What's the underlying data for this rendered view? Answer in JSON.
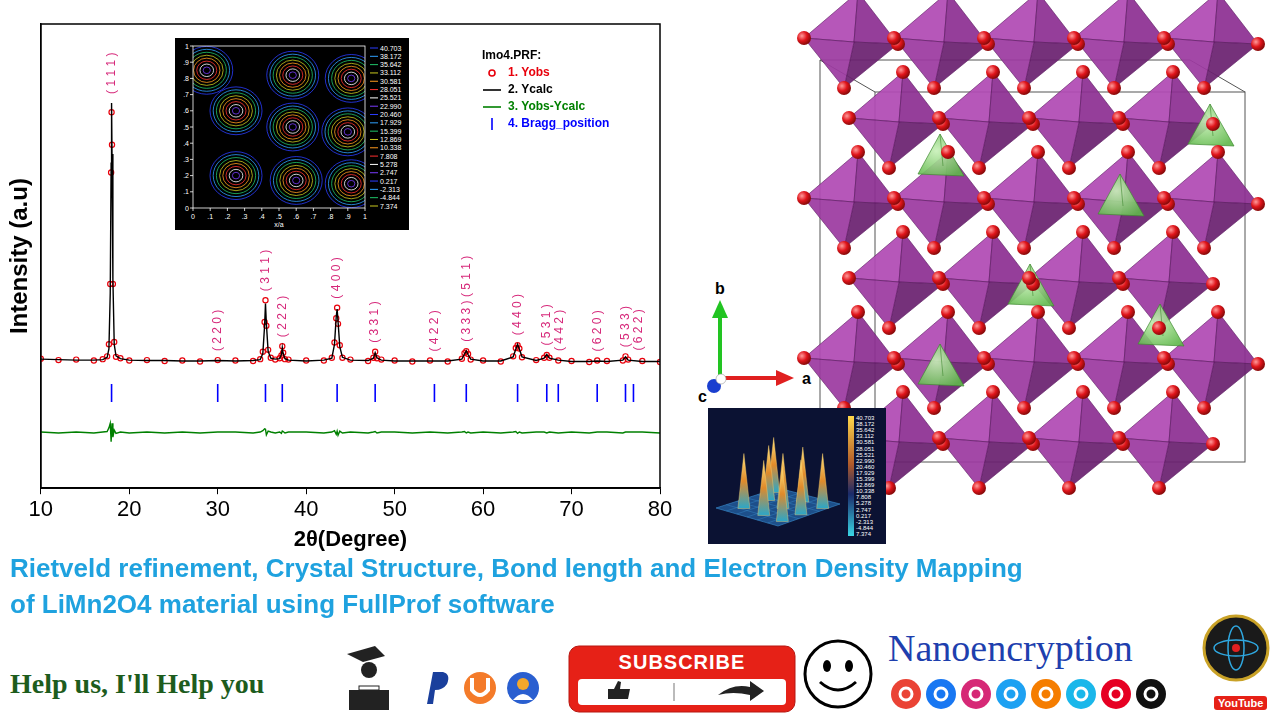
{
  "chart_data": {
    "type": "scatter",
    "xlabel": "2θ(Degree)",
    "ylabel": "Intensity (a.u)",
    "xlim": [
      10,
      80
    ],
    "xticks": [
      10,
      20,
      30,
      40,
      50,
      60,
      70,
      80
    ],
    "ylim": [
      0,
      100
    ],
    "tick_labels": "x",
    "grid": false,
    "legend": "top-right",
    "legend_title": "Imo4.PRF:",
    "x": [
      10,
      12,
      14,
      16,
      17,
      17.5,
      17.7,
      17.85,
      17.95,
      18.0,
      18.05,
      18.15,
      18.3,
      18.5,
      19,
      20,
      22,
      24,
      26,
      28,
      30,
      32,
      34,
      34.8,
      35.1,
      35.3,
      35.4,
      35.5,
      35.7,
      36.0,
      36.5,
      37.0,
      37.2,
      37.3,
      37.4,
      37.6,
      38,
      40,
      42,
      42.9,
      43.2,
      43.4,
      43.5,
      43.6,
      43.8,
      44.1,
      45,
      47,
      47.6,
      47.8,
      48.0,
      48.5,
      50,
      52,
      54,
      56,
      57.6,
      57.9,
      58.1,
      58.3,
      58.6,
      60,
      62,
      63.4,
      63.7,
      63.9,
      64.1,
      64.4,
      66,
      66.9,
      67.2,
      67.5,
      68.5,
      70,
      72,
      72.9,
      74,
      75.8,
      76.1,
      76.4,
      78,
      80
    ],
    "series": [
      {
        "name": "1. Yobs",
        "type": "scatter",
        "marker": "circle",
        "color": "#e8000b",
        "values": [
          27.9,
          27.6,
          27.7,
          27.5,
          27.8,
          28.4,
          31,
          44,
          68,
          81,
          74,
          44,
          31.5,
          28.3,
          28,
          27.5,
          27.6,
          27.4,
          27.5,
          27.3,
          27.6,
          27.5,
          27.4,
          27.8,
          29.4,
          35.8,
          40.5,
          35,
          29.8,
          28.1,
          27.7,
          28,
          28.6,
          30.6,
          29.2,
          27.8,
          27.7,
          27.5,
          27.5,
          28.1,
          31.4,
          36.6,
          38.9,
          35.4,
          30.8,
          28.1,
          27.7,
          27.4,
          28.1,
          29.4,
          28,
          27.7,
          27.5,
          27.3,
          27.5,
          27.3,
          27.9,
          29.1,
          29.5,
          28.9,
          27.7,
          27.5,
          27.3,
          28.4,
          30.2,
          30.8,
          30.1,
          28.2,
          27.6,
          28.1,
          28.7,
          28.1,
          27.5,
          27.4,
          27.2,
          27.5,
          27.4,
          27.5,
          28.4,
          27.7,
          27.4,
          27.2
        ]
      },
      {
        "name": "2. Ycalc",
        "type": "line",
        "color": "#000000",
        "values": [
          27.8,
          27.7,
          27.6,
          27.6,
          27.7,
          28.2,
          30,
          42,
          70,
          83,
          72,
          45,
          31,
          28.5,
          27.9,
          27.6,
          27.5,
          27.5,
          27.4,
          27.4,
          27.5,
          27.4,
          27.5,
          27.7,
          29,
          35,
          39.8,
          35.5,
          29.5,
          28,
          27.8,
          27.9,
          28.8,
          30.3,
          29,
          27.9,
          27.6,
          27.4,
          27.6,
          28,
          31,
          37,
          38.6,
          36,
          30.5,
          28.2,
          27.6,
          27.5,
          28,
          29.2,
          28.1,
          27.6,
          27.4,
          27.4,
          27.4,
          27.4,
          27.8,
          28.9,
          29.6,
          28.8,
          27.8,
          27.4,
          27.4,
          28.3,
          30,
          31,
          30,
          28.3,
          27.5,
          28,
          28.8,
          28,
          27.6,
          27.3,
          27.3,
          27.4,
          27.3,
          27.6,
          28.3,
          27.6,
          27.3,
          27.3
        ]
      },
      {
        "name": "3. Yobs-Ycalc",
        "type": "line",
        "color": "#008000",
        "values": [
          12.1,
          11.9,
          12.1,
          11.9,
          12.1,
          12.2,
          13,
          14,
          10,
          10,
          14,
          11,
          12.5,
          11.8,
          12.1,
          11.9,
          12.1,
          11.9,
          12.1,
          11.9,
          12.1,
          12.1,
          11.9,
          12.1,
          12.4,
          12.8,
          12.7,
          11.5,
          12.3,
          12.1,
          11.9,
          12.1,
          11.8,
          12.3,
          12.2,
          11.9,
          12.1,
          12.1,
          11.9,
          12.1,
          12.4,
          11.6,
          12.3,
          11.4,
          12.3,
          11.9,
          12.1,
          11.9,
          12.1,
          12.2,
          11.9,
          12.1,
          12.1,
          11.9,
          12.1,
          11.9,
          12.1,
          12.2,
          11.9,
          12.1,
          11.9,
          12.1,
          11.9,
          12.1,
          12.2,
          11.8,
          12.1,
          11.9,
          12.1,
          12.1,
          11.9,
          12.1,
          11.9,
          12.1,
          11.9,
          12.1,
          12.1,
          11.9,
          12.1,
          12.1,
          12.1,
          11.9
        ]
      },
      {
        "name": "4. Bragg_position",
        "type": "scatter",
        "marker": "line",
        "color": "#0000ff",
        "x": [
          18.0,
          30.0,
          35.4,
          37.3,
          43.5,
          47.8,
          54.5,
          58.1,
          63.9,
          67.2,
          68.5,
          72.9,
          76.1,
          77.0
        ],
        "values": [
          20.5,
          20.5,
          20.5,
          20.5,
          20.5,
          20.5,
          20.5,
          20.5,
          20.5,
          20.5,
          20.5,
          20.5,
          20.5,
          20.5
        ]
      }
    ],
    "annotations": [
      {
        "x": 18.0,
        "text": "( 1 1 1 )"
      },
      {
        "x": 30.0,
        "text": "( 2 2 0 )"
      },
      {
        "x": 35.4,
        "text": "( 3 1 1 )"
      },
      {
        "x": 37.3,
        "text": "( 2 2 2 )"
      },
      {
        "x": 43.5,
        "text": "( 4 0 0 )"
      },
      {
        "x": 47.8,
        "text": "( 3 3 1 )"
      },
      {
        "x": 54.5,
        "text": "( 4 2 2 )"
      },
      {
        "x": 58.1,
        "text": "( 3 3 3 ) ( 5 1 1 )"
      },
      {
        "x": 63.9,
        "text": "( 4 4 0 )"
      },
      {
        "x": 67.2,
        "text": "( 5 3 1 )"
      },
      {
        "x": 68.5,
        "text": "( 4 4 2 )"
      },
      {
        "x": 72.9,
        "text": "( 6 2 0 )"
      },
      {
        "x": 76.1,
        "text": "( 5 3 3 )"
      },
      {
        "x": 77.0,
        "text": "( 6 2 2 )"
      }
    ]
  },
  "contour_inset": {
    "xlabel": "x/a",
    "xticks": [
      0,
      {
        "value": 0.1,
        "label": ".1"
      },
      {
        "value": 0.2,
        "label": ".2"
      },
      {
        "value": 0.3,
        "label": ".3"
      },
      {
        "value": 0.4,
        "label": ".4"
      },
      {
        "value": 0.5,
        "label": ".5"
      },
      {
        "value": 0.6,
        "label": ".6"
      },
      {
        "value": 0.7,
        "label": ".7"
      },
      {
        "value": 0.8,
        "label": ".8"
      },
      {
        "value": 0.9,
        "label": ".9"
      },
      1
    ],
    "yticks": [
      0,
      {
        "value": 0.1,
        "label": ".1"
      },
      {
        "value": 0.2,
        "label": ".2"
      },
      {
        "value": 0.3,
        "label": ".3"
      },
      {
        "value": 0.4,
        "label": ".4"
      },
      {
        "value": 0.5,
        "label": ".5"
      },
      {
        "value": 0.6,
        "label": ".6"
      },
      {
        "value": 0.7,
        "label": ".7"
      },
      {
        "value": 0.8,
        "label": ".8"
      },
      {
        "value": 0.9,
        "label": ".9"
      },
      1
    ],
    "levels": [
      40.703,
      38.172,
      35.642,
      33.112,
      30.581,
      28.051,
      25.521,
      {
        "value": 22.99,
        "label": "22.990"
      },
      {
        "value": 20.46,
        "label": "20.460"
      },
      17.929,
      15.399,
      12.869,
      10.338,
      7.808,
      5.278,
      2.747,
      0.217,
      -2.313,
      -4.844,
      7.374
    ],
    "density_maxima": [
      {
        "x": 0.58,
        "y": 0.82
      },
      {
        "x": 0.92,
        "y": 0.8
      },
      {
        "x": 0.08,
        "y": 0.85
      },
      {
        "x": 0.25,
        "y": 0.6
      },
      {
        "x": 0.58,
        "y": 0.5
      },
      {
        "x": 0.9,
        "y": 0.47
      },
      {
        "x": 0.25,
        "y": 0.2
      },
      {
        "x": 0.6,
        "y": 0.17
      },
      {
        "x": 0.92,
        "y": 0.15
      }
    ]
  },
  "structure": {
    "axes": [
      "a",
      "b",
      "c"
    ]
  },
  "surface_inset": {
    "levels": [
      40.703,
      38.172,
      35.642,
      33.112,
      30.581,
      28.051,
      25.521,
      {
        "value": 22.99,
        "label": "22.990"
      },
      {
        "value": 20.46,
        "label": "20.460"
      },
      17.929,
      15.399,
      12.869,
      10.338,
      7.808,
      5.278,
      2.747,
      0.217,
      -2.313,
      -4.844,
      7.374
    ]
  },
  "footer": {
    "title": [
      "Rietveld refinement, Crystal Structure, Bond length and Electron Density Mapping",
      "of LiMn2O4 material using FullProf software"
    ],
    "slogan": "Help us, I'll Help you",
    "button": "SUBSCRIBE",
    "brand": "Nanoencryption",
    "platform": "YouTube"
  }
}
